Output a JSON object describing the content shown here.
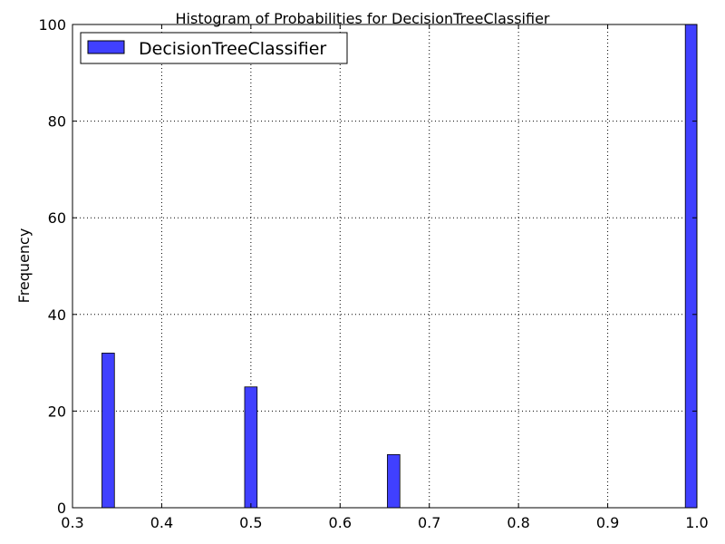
{
  "chart_data": {
    "type": "bar",
    "title": "Histogram of Probabilities for DecisionTreeClassifier",
    "xlabel": "",
    "ylabel": "Frequency",
    "xlim": [
      0.3,
      1.0
    ],
    "ylim": [
      0,
      100
    ],
    "xticks": [
      "0.3",
      "0.4",
      "0.5",
      "0.6",
      "0.7",
      "0.8",
      "0.9",
      "1.0"
    ],
    "yticks": [
      "0",
      "20",
      "40",
      "60",
      "80",
      "100"
    ],
    "grid": true,
    "legend_position": "top-left",
    "bar_color": "#4040ff",
    "series": [
      {
        "name": "DecisionTreeClassifier",
        "bins": [
          {
            "x0": 0.333,
            "x1": 0.347,
            "count": 32
          },
          {
            "x0": 0.493,
            "x1": 0.507,
            "count": 25
          },
          {
            "x0": 0.653,
            "x1": 0.667,
            "count": 11
          },
          {
            "x0": 0.987,
            "x1": 1.0,
            "count": 100
          }
        ]
      }
    ]
  }
}
